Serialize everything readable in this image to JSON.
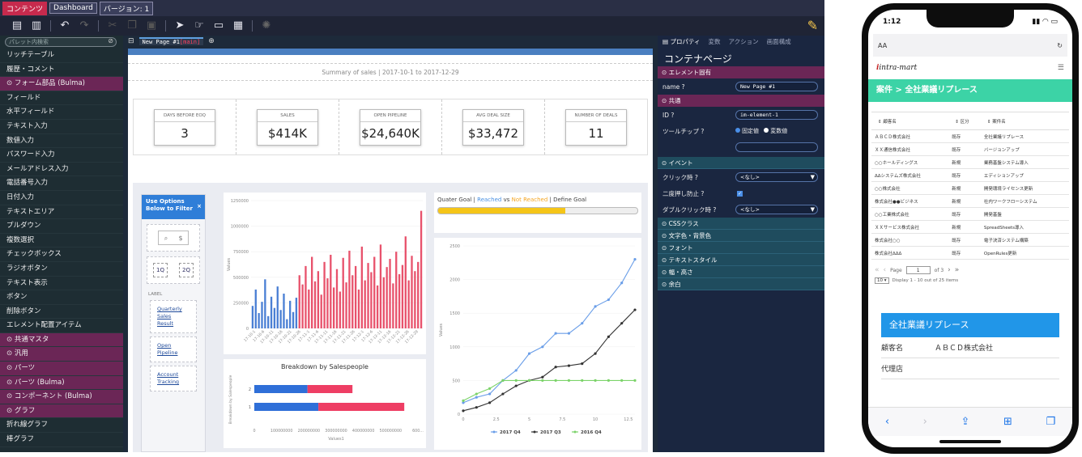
{
  "topbar": {
    "tabs": [
      {
        "label": "コンテンツ",
        "active": true
      },
      {
        "label": "Dashboard",
        "active": false
      },
      {
        "label": "バージョン: 1",
        "active": false
      }
    ]
  },
  "palette": {
    "search_placeholder": "パレット内検索",
    "items": [
      {
        "label": "リッチテーブル",
        "cat": false
      },
      {
        "label": "履歴・コメント",
        "cat": false
      },
      {
        "label": "⊙ フォーム部品 (Bulma)",
        "cat": true
      },
      {
        "label": "フィールド",
        "cat": false
      },
      {
        "label": "水平フィールド",
        "cat": false
      },
      {
        "label": "テキスト入力",
        "cat": false
      },
      {
        "label": "数値入力",
        "cat": false
      },
      {
        "label": "パスワード入力",
        "cat": false
      },
      {
        "label": "メールアドレス入力",
        "cat": false
      },
      {
        "label": "電話番号入力",
        "cat": false
      },
      {
        "label": "日付入力",
        "cat": false
      },
      {
        "label": "テキストエリア",
        "cat": false
      },
      {
        "label": "プルダウン",
        "cat": false
      },
      {
        "label": "複数選択",
        "cat": false
      },
      {
        "label": "チェックボックス",
        "cat": false
      },
      {
        "label": "ラジオボタン",
        "cat": false
      },
      {
        "label": "テキスト表示",
        "cat": false
      },
      {
        "label": "ボタン",
        "cat": false
      },
      {
        "label": "削除ボタン",
        "cat": false
      },
      {
        "label": "エレメント配置アイテム",
        "cat": false
      },
      {
        "label": "⊙ 共通マスタ",
        "cat": true
      },
      {
        "label": "⊙ 汎用",
        "cat": true
      },
      {
        "label": "⊙ パーツ",
        "cat": true
      },
      {
        "label": "⊙ パーツ (Bulma)",
        "cat": true
      },
      {
        "label": "⊙ コンポーネント (Bulma)",
        "cat": true
      },
      {
        "label": "⊙ グラフ",
        "cat": true
      },
      {
        "label": "折れ線グラフ",
        "cat": false
      },
      {
        "label": "棒グラフ",
        "cat": false
      }
    ]
  },
  "canvas": {
    "page_tab": "New Page #1",
    "page_tab_suffix": "[main]",
    "summary": "Summary of sales | 2017-10-1 to 2017-12-29",
    "kpis": [
      {
        "label": "DAYS BEFORE EOQ",
        "value": "3"
      },
      {
        "label": "SALES",
        "value": "$414K"
      },
      {
        "label": "OPEN PIPELINE",
        "value": "$24,640K"
      },
      {
        "label": "AVG DEAL SIZE",
        "value": "$33,472"
      },
      {
        "label": "NUMBER OF DEALS",
        "value": "11"
      }
    ],
    "filter": {
      "title_line1": "Use Options",
      "title_line2": "Below to Filter",
      "close": "×",
      "q1": "1Q",
      "q2": "2Q",
      "label": "LABEL",
      "links": [
        {
          "l1": "Quarterly",
          "l2": "Sales",
          "l3": "Result"
        },
        {
          "l1": "Open",
          "l2": "Pipeline",
          "l3": ""
        },
        {
          "l1": "Account",
          "l2": "Tracking",
          "l3": ""
        }
      ]
    },
    "goal": {
      "prefix": "Quater Goal |",
      "reached": "Reached",
      "vs": "vs",
      "not_reached": "Not Reached",
      "suffix": "| Define Goal",
      "progress": 0.64
    }
  },
  "chart_data": [
    {
      "type": "bar",
      "ylabel": "Values",
      "ylim": [
        0,
        1250000
      ],
      "yticks": [
        "1250000",
        "1000000",
        "750000",
        "500000",
        "250000",
        "0"
      ],
      "series": [
        {
          "values": [
            220000,
            380000,
            150000,
            260000,
            480000,
            120000,
            310000,
            200000,
            410000,
            180000,
            340000,
            90000,
            270000,
            160000,
            300000
          ]
        },
        {
          "values": [
            520000,
            430000,
            610000,
            380000,
            700000,
            460000,
            560000,
            330000,
            650000,
            490000,
            720000,
            400000,
            580000,
            360000,
            690000,
            450000,
            760000,
            520000,
            610000,
            380000,
            800000,
            470000,
            640000,
            550000,
            700000,
            420000,
            820000,
            500000,
            600000,
            680000,
            440000,
            750000,
            530000,
            620000,
            900000,
            470000,
            710000,
            560000,
            650000,
            1150000
          ]
        }
      ],
      "colors": [
        "#4a7fd4",
        "#e8526c"
      ],
      "xticks": [
        "17-10-1",
        "17-10-6",
        "17-10-11",
        "17-10-16",
        "17-10-21",
        "17-10-26",
        "17-11-1",
        "17-11-6",
        "17-11-11",
        "17-11-16",
        "17-11-21",
        "17-11-26",
        "17-12-1",
        "17-12-6",
        "17-12-11",
        "17-12-16",
        "17-12-21",
        "17-12-26",
        "17-12-29"
      ]
    },
    {
      "type": "bar",
      "orientation": "horizontal",
      "title": "Breakdown by Salespeople",
      "ylabel": "Breakdown by Salespeople",
      "xlabel": "Values1",
      "categories": [
        "2",
        "1"
      ],
      "series": [
        {
          "values": [
            195000000,
            235000000
          ],
          "color": "#2f6fd8"
        },
        {
          "values": [
            165000000,
            315000000
          ],
          "color": "#ee3e64"
        }
      ],
      "xlim": [
        0,
        600000000
      ],
      "xticks": [
        "0",
        "100000000",
        "200000000",
        "300000000",
        "400000000",
        "500000000",
        "600..."
      ]
    },
    {
      "type": "line",
      "ylabel": "Values",
      "xlim": [
        0,
        13
      ],
      "ylim": [
        0,
        2500
      ],
      "xticks": [
        "0",
        "2.5",
        "5",
        "7.5",
        "10",
        "12.5"
      ],
      "yticks": [
        "2500",
        "2000",
        "1500",
        "1000",
        "500",
        "0"
      ],
      "x": [
        0,
        1,
        2,
        3,
        4,
        5,
        6,
        7,
        8,
        9,
        10,
        11,
        12,
        13
      ],
      "series": [
        {
          "name": "2017 Q4",
          "color": "#6a9ee8",
          "values": [
            170,
            250,
            300,
            500,
            650,
            900,
            1000,
            1200,
            1200,
            1350,
            1600,
            1700,
            1950,
            2300
          ]
        },
        {
          "name": "2017 Q3",
          "color": "#333333",
          "values": [
            50,
            100,
            170,
            300,
            420,
            500,
            550,
            700,
            720,
            750,
            900,
            1150,
            1350,
            1550
          ]
        },
        {
          "name": "2016 Q4",
          "color": "#7cd36a",
          "values": [
            200,
            300,
            380,
            500,
            500,
            500,
            500,
            500,
            500,
            500,
            500,
            500,
            500,
            500
          ]
        }
      ]
    }
  ],
  "props": {
    "tabs": [
      {
        "label": "プロパティ",
        "active": true
      },
      {
        "label": "変数",
        "active": false
      },
      {
        "label": "アクション",
        "active": false
      },
      {
        "label": "画面構成",
        "active": false
      }
    ],
    "title": "コンテナページ",
    "sec_element": "⊙ エレメント固有",
    "name_label": "name ?",
    "name_value": "New Page #1",
    "sec_common": "⊙ 共通",
    "id_label": "ID ?",
    "id_value": "im-element-1",
    "tooltip_label": "ツールチップ ?",
    "tooltip_opt1": "固定値",
    "tooltip_opt2": "変数値",
    "sec_event": "⊙ イベント",
    "click_label": "クリック時 ?",
    "click_value": "<なし>",
    "double_guard_label": "二度押し防止 ?",
    "dblclick_label": "ダブルクリック時 ?",
    "dblclick_value": "<なし>",
    "sections": [
      "⊙ CSSクラス",
      "⊙ 文字色・背景色",
      "⊙ フォント",
      "⊙ テキストスタイル",
      "⊙ 幅・高さ",
      "⊙ 余白"
    ]
  },
  "phone": {
    "time": "1:12",
    "addr_aa": "AA",
    "brand": "intra-mart",
    "title": "案件 > 全社業議リプレース",
    "headers": [
      "顧客名",
      "区分",
      "案件名"
    ],
    "rows": [
      [
        "ＡＢＣＤ株式会社",
        "既存",
        "全社業議リプレース"
      ],
      [
        "ＸＸ通信株式会社",
        "既存",
        "バージョンアップ"
      ],
      [
        "○○ホールディングス",
        "新規",
        "業務基盤システム導入"
      ],
      [
        "ΔΔシステムズ株式会社",
        "既存",
        "エディションアップ"
      ],
      [
        "○○株式会社",
        "新規",
        "開発環境ライセンス更新"
      ],
      [
        "株式会社●●ビジネス",
        "新規",
        "社内ワークフローシステム"
      ],
      [
        "○○工業株式会社",
        "既存",
        "開発基盤"
      ],
      [
        "ＸＸサービス株式会社",
        "新規",
        "SpreadSheets導入"
      ],
      [
        "株式会社○○",
        "既存",
        "電子決済システム構築"
      ],
      [
        "株式会社ΔΔΔ",
        "既存",
        "OpenRules更新"
      ]
    ],
    "page_label": "Page",
    "page_value": "1",
    "of_label": "of 3",
    "page_size": "10",
    "display_text": "Display 1 - 10 out of 25 items",
    "big_title": "全社業議リプレース",
    "detail1_key": "顧客名",
    "detail1_val": "ＡＢＣＤ株式会社",
    "detail2_key": "代理店"
  }
}
